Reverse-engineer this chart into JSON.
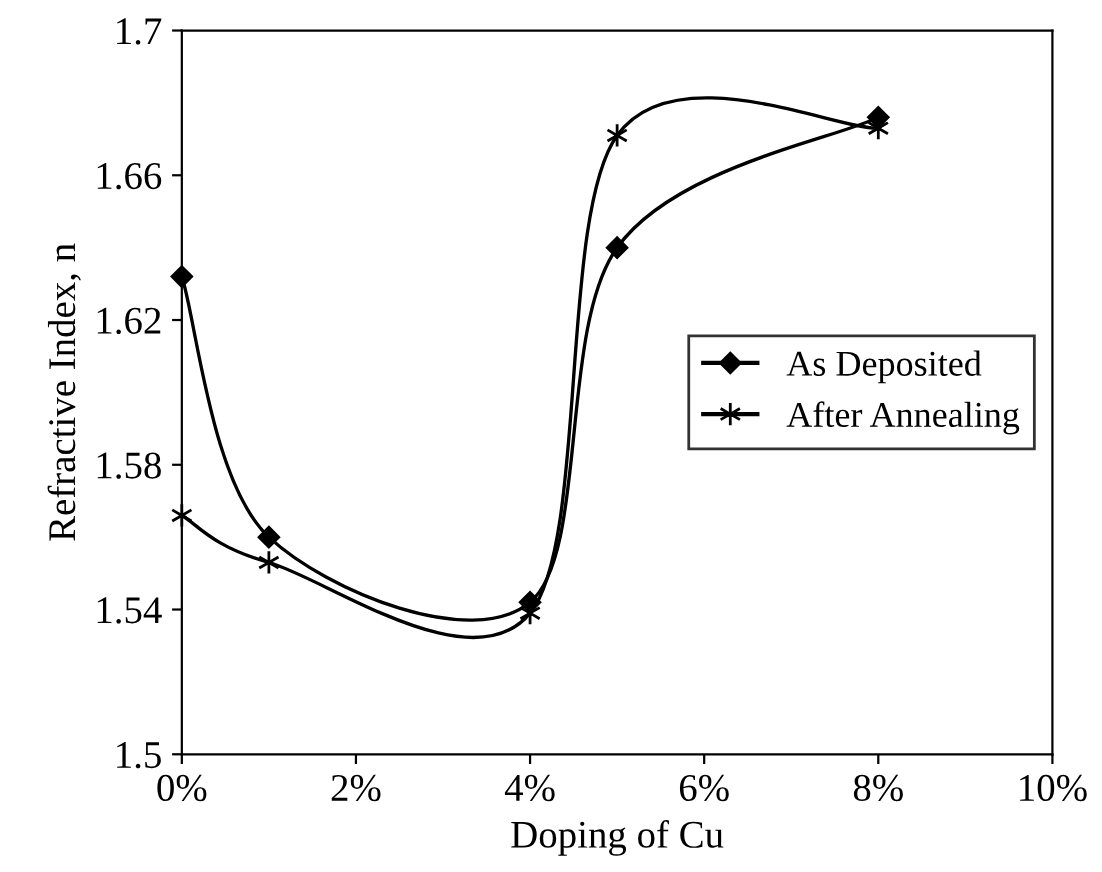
{
  "chart_data": {
    "type": "line",
    "xlabel": "Doping of Cu",
    "ylabel": "Refractive Index, n",
    "xlim": [
      0,
      10
    ],
    "xticks": [
      {
        "value": 0,
        "label": "0%"
      },
      {
        "value": 2,
        "label": "2%"
      },
      {
        "value": 4,
        "label": "4%"
      },
      {
        "value": 6,
        "label": "6%"
      },
      {
        "value": 8,
        "label": "8%"
      },
      {
        "value": 10,
        "label": "10%"
      }
    ],
    "ylim": [
      1.5,
      1.7
    ],
    "yticks": [
      1.5,
      1.54,
      1.58,
      1.62,
      1.66,
      1.7
    ],
    "series": [
      {
        "name": "As Deposited",
        "color": "#000000",
        "marker": "diamond",
        "x": [
          0,
          1,
          4,
          5,
          8
        ],
        "values": [
          1.632,
          1.56,
          1.542,
          1.64,
          1.676
        ]
      },
      {
        "name": "After Annealing",
        "color": "#000000",
        "marker": "cross",
        "x": [
          0,
          1,
          4,
          5,
          8
        ],
        "values": [
          1.566,
          1.553,
          1.539,
          1.671,
          1.673
        ]
      }
    ],
    "grid": false,
    "legend": "right",
    "line_style": "solid"
  }
}
